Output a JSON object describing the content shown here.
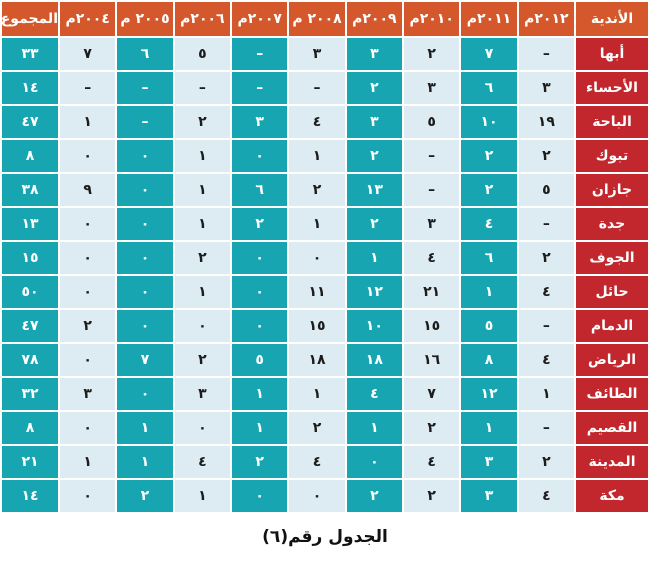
{
  "table": {
    "header": {
      "clubs_label": "الأندية",
      "years": [
        "٢٠١٢م",
        "٢٠١١م",
        "٢٠١٠م",
        "٢٠٠٩م",
        "٢٠٠٨ م",
        "٢٠٠٧م",
        "٢٠٠٦م",
        "٢٠٠٥ م",
        "٢٠٠٤م"
      ],
      "total_label": "المجموع"
    },
    "rows": [
      {
        "club": "أبها",
        "values": [
          "–",
          "٧",
          "٢",
          "٣",
          "٣",
          "–",
          "٥",
          "٦",
          "٧"
        ],
        "total": "٣٣"
      },
      {
        "club": "الأحساء",
        "values": [
          "٣",
          "٦",
          "٣",
          "٢",
          "–",
          "–",
          "–",
          "–",
          "–"
        ],
        "total": "١٤"
      },
      {
        "club": "الباحة",
        "values": [
          "١٩",
          "١٠",
          "٥",
          "٣",
          "٤",
          "٣",
          "٢",
          "–",
          "١"
        ],
        "total": "٤٧"
      },
      {
        "club": "تبوك",
        "values": [
          "٢",
          "٢",
          "–",
          "٢",
          "١",
          "٠",
          "١",
          "٠",
          "٠"
        ],
        "total": "٨"
      },
      {
        "club": "جازان",
        "values": [
          "٥",
          "٢",
          "–",
          "١٣",
          "٢",
          "٦",
          "١",
          "٠",
          "٩"
        ],
        "total": "٣٨"
      },
      {
        "club": "جدة",
        "values": [
          "–",
          "٤",
          "٣",
          "٢",
          "١",
          "٢",
          "١",
          "٠",
          "٠"
        ],
        "total": "١٣"
      },
      {
        "club": "الجوف",
        "values": [
          "٢",
          "٦",
          "٤",
          "١",
          "٠",
          "٠",
          "٢",
          "٠",
          "٠"
        ],
        "total": "١٥"
      },
      {
        "club": "حائل",
        "values": [
          "٤",
          "١",
          "٢١",
          "١٢",
          "١١",
          "٠",
          "١",
          "٠",
          "٠"
        ],
        "total": "٥٠"
      },
      {
        "club": "الدمام",
        "values": [
          "–",
          "٥",
          "١٥",
          "١٠",
          "١٥",
          "٠",
          "٠",
          "٠",
          "٢"
        ],
        "total": "٤٧"
      },
      {
        "club": "الرياض",
        "values": [
          "٤",
          "٨",
          "١٦",
          "١٨",
          "١٨",
          "٥",
          "٢",
          "٧",
          "٠"
        ],
        "total": "٧٨"
      },
      {
        "club": "الطائف",
        "values": [
          "١",
          "١٢",
          "٧",
          "٤",
          "١",
          "١",
          "٣",
          "٠",
          "٣"
        ],
        "total": "٣٢"
      },
      {
        "club": "القصيم",
        "values": [
          "–",
          "١",
          "٢",
          "١",
          "٢",
          "١",
          "٠",
          "١",
          "٠"
        ],
        "total": "٨"
      },
      {
        "club": "المدينة",
        "values": [
          "٢",
          "٣",
          "٤",
          "٠",
          "٤",
          "٢",
          "٤",
          "١",
          "١"
        ],
        "total": "٢١"
      },
      {
        "club": "مكة",
        "values": [
          "٤",
          "٣",
          "٢",
          "٢",
          "٠",
          "٠",
          "١",
          "٢",
          "٠"
        ],
        "total": "١٤"
      }
    ]
  },
  "caption": "الجدول رقم(٦)",
  "colors": {
    "header_bg": "#d4582b",
    "club_bg": "#c1272d",
    "cell_teal": "#16a5b1",
    "cell_light": "#dcecf2",
    "header_text": "#ffffff",
    "cell_dark_text": "#1c1c1c"
  }
}
